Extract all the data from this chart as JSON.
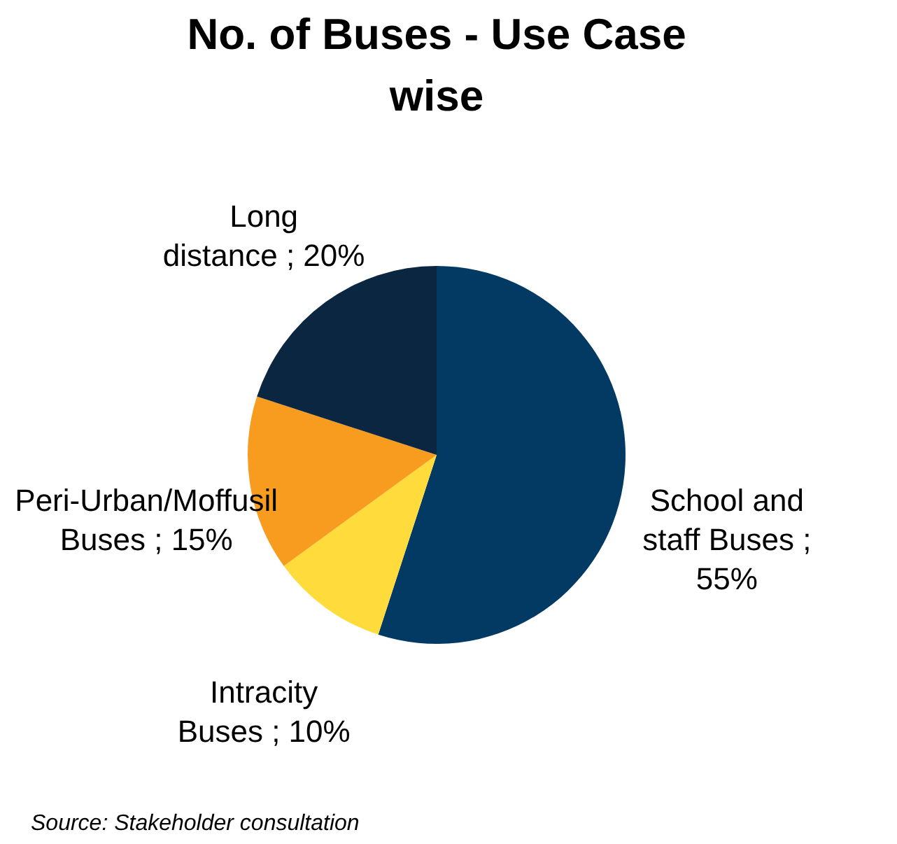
{
  "chart_data": {
    "type": "pie",
    "title": "No. of Buses - Use Case wise",
    "categories": [
      "School and staff Buses",
      "Intracity Buses",
      "Peri-Urban/Moffusil Buses",
      "Long distance"
    ],
    "values": [
      55,
      10,
      15,
      20
    ],
    "colors": [
      "#023a64",
      "#ffdc3c",
      "#f89c1f",
      "#0b2641"
    ],
    "value_labels": [
      "; 55%",
      "; 10%",
      "; 15%",
      "; 20%"
    ],
    "annotations": [
      "Source: Stakeholder consultation"
    ]
  }
}
